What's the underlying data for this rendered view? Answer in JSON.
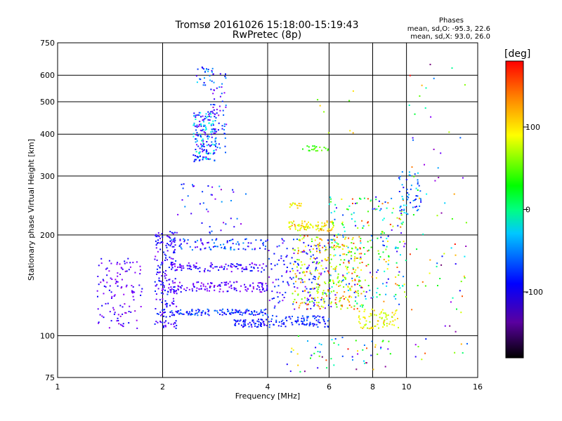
{
  "chart_data": {
    "type": "scatter",
    "title": "Tromsø 20161026 15:18:00-15:19:43",
    "subtitle": "RwPretec (8p)",
    "xlabel": "Frequency [MHz]",
    "ylabel": "Stationary phase Virtual Height [km]",
    "x_scale": "log",
    "y_scale": "log",
    "xlim": [
      1,
      16
    ],
    "ylim": [
      75,
      750
    ],
    "x_ticks": [
      1,
      2,
      4,
      6,
      8,
      10,
      16
    ],
    "x_tick_labels": [
      "1",
      "2",
      "4",
      "6",
      "8",
      "10",
      "16"
    ],
    "y_ticks": [
      75,
      100,
      200,
      300,
      400,
      500,
      600,
      750
    ],
    "y_tick_labels": [
      "75",
      "100",
      "200",
      "300",
      "400",
      "500",
      "600",
      "750"
    ],
    "grid": true,
    "stats": {
      "title": "Phases",
      "line_o": "mean, sd,O: -95.3, 22.6",
      "line_x": "mean, sd,X:  93.0, 26.0"
    },
    "colorbar": {
      "label": "[deg]",
      "range": [
        -180,
        180
      ],
      "ticks": [
        100,
        0,
        -100
      ],
      "tick_labels": [
        "100",
        "0",
        "-100"
      ]
    },
    "clusters": [
      {
        "f": [
          2.45,
          2.85
        ],
        "h": [
          330,
          470
        ],
        "phase": [
          -150,
          -15
        ],
        "n": 180
      },
      {
        "f": [
          2.75,
          3.05
        ],
        "h": [
          350,
          620
        ],
        "phase": [
          -160,
          -60
        ],
        "n": 60
      },
      {
        "f": [
          2.5,
          2.8
        ],
        "h": [
          560,
          640
        ],
        "phase": [
          -130,
          -40
        ],
        "n": 25
      },
      {
        "f": [
          1.9,
          2.2
        ],
        "h": [
          105,
          205
        ],
        "phase": [
          -150,
          -90
        ],
        "n": 200
      },
      {
        "f": [
          1.3,
          1.75
        ],
        "h": [
          105,
          170
        ],
        "phase": [
          -160,
          -110
        ],
        "n": 120
      },
      {
        "f": [
          2.1,
          4.0
        ],
        "h": [
          115,
          120
        ],
        "phase": [
          -130,
          -70
        ],
        "n": 120
      },
      {
        "f": [
          2.1,
          4.0
        ],
        "h": [
          135,
          145
        ],
        "phase": [
          -160,
          -110
        ],
        "n": 120
      },
      {
        "f": [
          2.1,
          4.0
        ],
        "h": [
          155,
          165
        ],
        "phase": [
          -150,
          -100
        ],
        "n": 100
      },
      {
        "f": [
          2.1,
          4.0
        ],
        "h": [
          180,
          195
        ],
        "phase": [
          -140,
          -60
        ],
        "n": 90
      },
      {
        "f": [
          3.2,
          4.0
        ],
        "h": [
          106,
          112
        ],
        "phase": [
          -130,
          -90
        ],
        "n": 60
      },
      {
        "f": [
          4.0,
          6.0
        ],
        "h": [
          106,
          115
        ],
        "phase": [
          -120,
          -80
        ],
        "n": 90
      },
      {
        "f": [
          4.0,
          6.0
        ],
        "h": [
          120,
          195
        ],
        "phase": [
          -150,
          -80
        ],
        "n": 150
      },
      {
        "f": [
          4.7,
          7.5
        ],
        "h": [
          120,
          200
        ],
        "phase": [
          50,
          170
        ],
        "n": 280
      },
      {
        "f": [
          4.6,
          6.2
        ],
        "h": [
          205,
          220
        ],
        "phase": [
          80,
          140
        ],
        "n": 90
      },
      {
        "f": [
          5.0,
          6.0
        ],
        "h": [
          355,
          370
        ],
        "phase": [
          40,
          70
        ],
        "n": 20
      },
      {
        "f": [
          6.0,
          10.0
        ],
        "h": [
          120,
          260
        ],
        "phase": [
          -140,
          170
        ],
        "n": 260
      },
      {
        "f": [
          7.3,
          9.5
        ],
        "h": [
          105,
          120
        ],
        "phase": [
          80,
          130
        ],
        "n": 80
      },
      {
        "f": [
          9.5,
          11.0
        ],
        "h": [
          230,
          310
        ],
        "phase": [
          -120,
          -40
        ],
        "n": 50
      },
      {
        "f": [
          10.0,
          15.0
        ],
        "h": [
          80,
          660
        ],
        "phase": [
          -180,
          180
        ],
        "n": 80
      },
      {
        "f": [
          2.2,
          3.5
        ],
        "h": [
          200,
          290
        ],
        "phase": [
          -160,
          -60
        ],
        "n": 40
      },
      {
        "f": [
          4.5,
          9.0
        ],
        "h": [
          78,
          100
        ],
        "phase": [
          -180,
          180
        ],
        "n": 60
      },
      {
        "f": [
          5.5,
          7.2
        ],
        "h": [
          400,
          560
        ],
        "phase": [
          40,
          160
        ],
        "n": 8
      },
      {
        "f": [
          4.6,
          5.0
        ],
        "h": [
          240,
          250
        ],
        "phase": [
          90,
          130
        ],
        "n": 15
      }
    ]
  }
}
